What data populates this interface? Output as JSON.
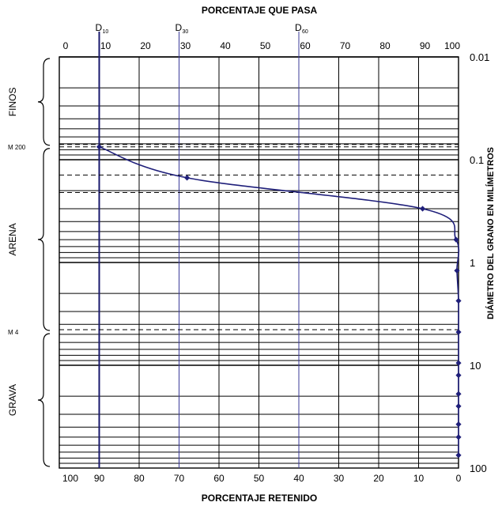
{
  "chart_data": {
    "type": "line",
    "title_top": "PORCENTAJE QUE PASA",
    "title_bottom": "PORCENTAJE RETENIDO",
    "right_axis_label": "DIÁMETRO DEL GRANO EN MILÍMETROS",
    "top_ticks": [
      "0",
      "10",
      "20",
      "30",
      "40",
      "50",
      "60",
      "70",
      "80",
      "90",
      "100"
    ],
    "bottom_ticks": [
      "100",
      "90",
      "80",
      "70",
      "60",
      "50",
      "40",
      "30",
      "20",
      "10",
      "0"
    ],
    "right_ticks": [
      "0.01",
      "0.1",
      "1",
      "10",
      "100"
    ],
    "y_scale": "log",
    "y_range": [
      0.01,
      100
    ],
    "x_range": [
      0,
      100
    ],
    "markers": [
      {
        "label": "D",
        "sub": "10",
        "x": 10
      },
      {
        "label": "D",
        "sub": "30",
        "x": 30
      },
      {
        "label": "D",
        "sub": "60",
        "x": 60
      }
    ],
    "sieves": [
      {
        "label": "M 200",
        "diameter": 0.075
      },
      {
        "label": "M 4",
        "diameter": 4.75
      }
    ],
    "soil_classes": [
      {
        "label": "FINOS",
        "from": 0.01,
        "to": 0.075
      },
      {
        "label": "ARENA",
        "from": 0.075,
        "to": 4.75
      },
      {
        "label": "GRAVA",
        "from": 4.75,
        "to": 100
      }
    ],
    "series": [
      {
        "color": "#1f1f7a",
        "points": [
          {
            "x": 10,
            "y": 0.075
          },
          {
            "x": 32,
            "y": 0.15
          },
          {
            "x": 91,
            "y": 0.3
          },
          {
            "x": 99.4,
            "y": 0.6
          },
          {
            "x": 99.6,
            "y": 1.2
          },
          {
            "x": 100,
            "y": 2.36
          },
          {
            "x": 100,
            "y": 4.75
          },
          {
            "x": 100,
            "y": 9.5
          },
          {
            "x": 100,
            "y": 12.5
          },
          {
            "x": 100,
            "y": 19
          },
          {
            "x": 100,
            "y": 25
          },
          {
            "x": 100,
            "y": 37.5
          },
          {
            "x": 100,
            "y": 50
          },
          {
            "x": 100,
            "y": 75
          }
        ]
      }
    ]
  }
}
